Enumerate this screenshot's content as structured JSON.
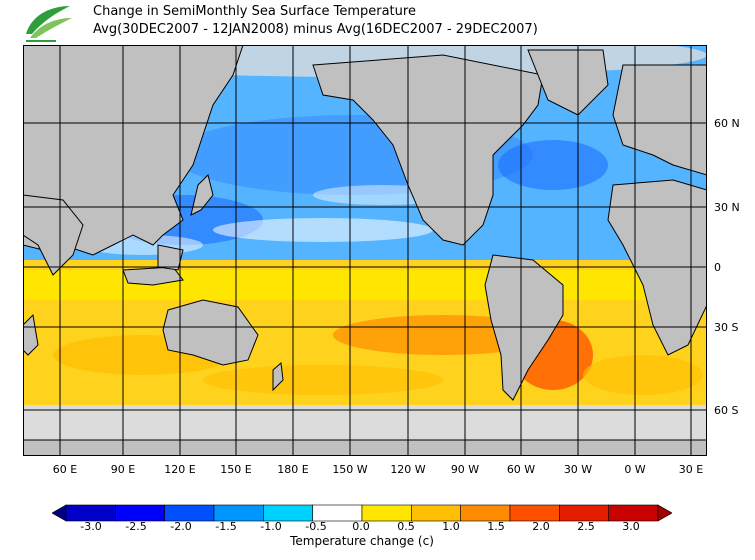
{
  "title": {
    "line1": "Change in SemiMonthly Sea Surface Temperature",
    "line2": "Avg(30DEC2007 - 12JAN2008) minus Avg(16DEC2007 - 29DEC2007)"
  },
  "logo": {
    "icon": "leaf-logo-icon",
    "colors": [
      "#2e9e3a",
      "#7fc45a"
    ]
  },
  "map": {
    "lon_ticks": [
      "60 E",
      "90 E",
      "120 E",
      "150 E",
      "180 E",
      "150 W",
      "120 W",
      "90 W",
      "60 W",
      "30 W",
      "0 W",
      "30 E"
    ],
    "lat_ticks": [
      "60 N",
      "30 N",
      "0",
      "30 S",
      "60 S"
    ],
    "land_color": "#c0c0c0",
    "no_data_color": "#dcdcdc"
  },
  "legend": {
    "title": "Temperature change  (c)",
    "labels": [
      "-3.0",
      "-2.5",
      "-2.0",
      "-1.5",
      "-1.0",
      "-0.5",
      "0.0",
      "0.5",
      "1.0",
      "1.5",
      "2.0",
      "2.5",
      "3.0"
    ],
    "colors": [
      "#000080",
      "#0000c8",
      "#0000ff",
      "#0050ff",
      "#0096ff",
      "#00d2ff",
      "#ffffff",
      "#ffe600",
      "#ffbe00",
      "#ff8c00",
      "#ff5000",
      "#e61e00",
      "#c80000",
      "#a00000"
    ]
  }
}
